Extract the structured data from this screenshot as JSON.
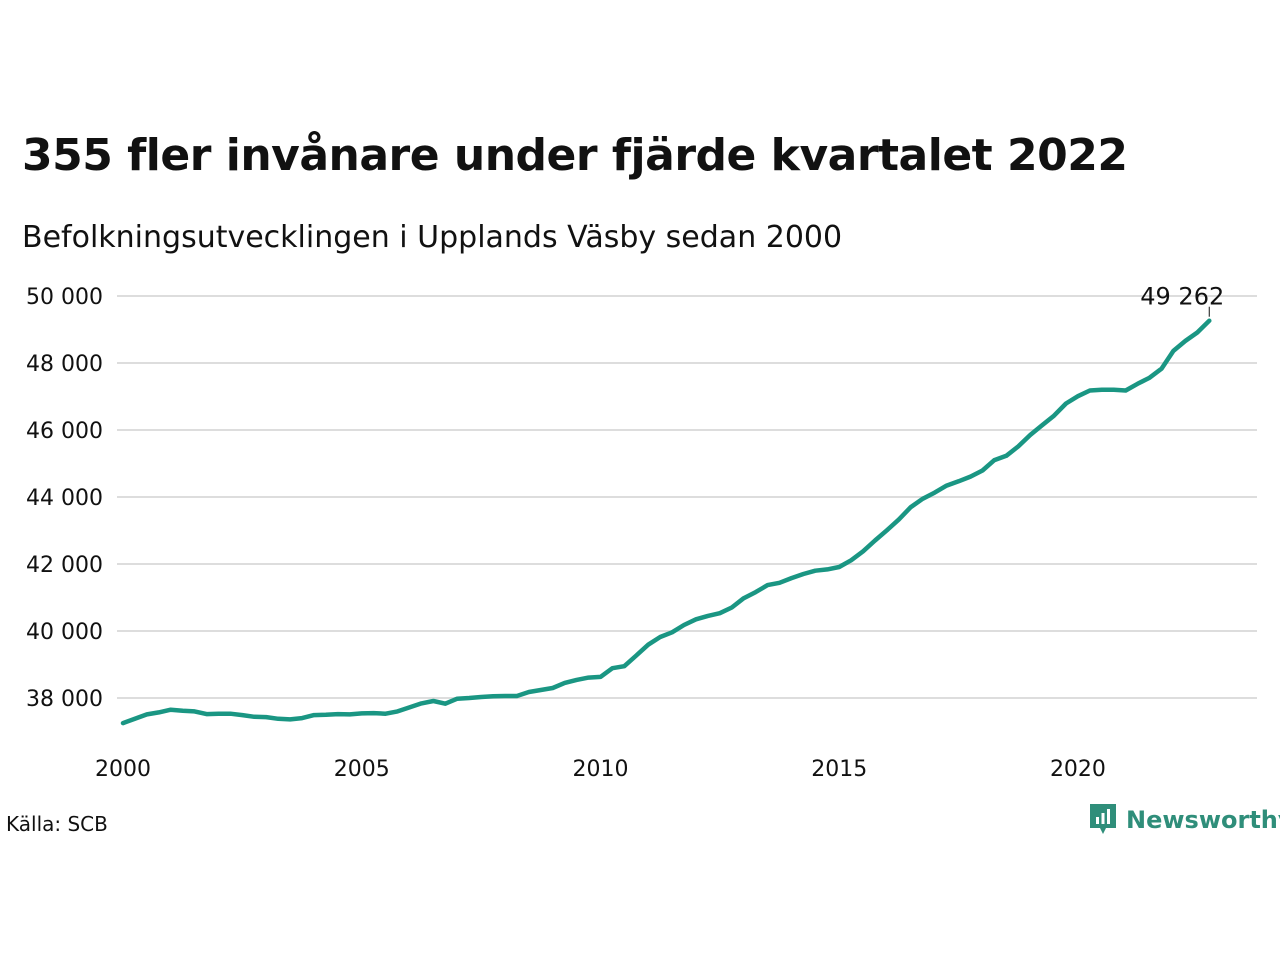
{
  "title": "355 fler invånare under fjärde kvartalet 2022",
  "subtitle": "Befolkningsutvecklingen i Upplands Väsby sedan 2000",
  "source": "Källa: SCB",
  "logo_text": "Newsworthy",
  "colors": {
    "line": "#1a9683",
    "grid": "#dddddd",
    "logo": "#2f8e7a"
  },
  "chart_data": {
    "type": "line",
    "title": "355 fler invånare under fjärde kvartalet 2022",
    "xlabel": "",
    "ylabel": "",
    "xlim": [
      2000,
      2023.75
    ],
    "ylim": [
      37000,
      50500
    ],
    "y_ticks": [
      38000,
      40000,
      42000,
      44000,
      46000,
      48000,
      50000
    ],
    "y_tick_labels": [
      "38 000",
      "40 000",
      "42 000",
      "44 000",
      "46 000",
      "48 000",
      "50 000"
    ],
    "x_ticks": [
      2000,
      2005,
      2010,
      2015,
      2020
    ],
    "x_tick_labels": [
      "2000",
      "2005",
      "2010",
      "2015",
      "2020"
    ],
    "grid": "horizontal",
    "end_label": "49 262",
    "series": [
      {
        "x": [
          2000.0,
          2000.25,
          2000.5,
          2000.75,
          2001.0,
          2001.25,
          2001.5,
          2001.75,
          2002.0,
          2002.25,
          2002.5,
          2002.75,
          2003.0,
          2003.25,
          2003.5,
          2003.75,
          2004.0,
          2004.25,
          2004.5,
          2004.75,
          2005.0,
          2005.25,
          2005.5,
          2005.75,
          2006.0,
          2006.25,
          2006.5,
          2006.75,
          2007.0,
          2007.25,
          2007.5,
          2007.75,
          2008.0,
          2008.25,
          2008.5,
          2008.75,
          2009.0,
          2009.25,
          2009.5,
          2009.75,
          2010.0,
          2010.25,
          2010.5,
          2010.75,
          2011.0,
          2011.25,
          2011.5,
          2011.75,
          2012.0,
          2012.25,
          2012.5,
          2012.75,
          2013.0,
          2013.25,
          2013.5,
          2013.75,
          2014.0,
          2014.25,
          2014.5,
          2014.75,
          2015.0,
          2015.25,
          2015.5,
          2015.75,
          2016.0,
          2016.25,
          2016.5,
          2016.75,
          2017.0,
          2017.25,
          2017.5,
          2017.75,
          2018.0,
          2018.25,
          2018.5,
          2018.75,
          2019.0,
          2019.25,
          2019.5,
          2019.75,
          2020.0,
          2020.25,
          2020.5,
          2020.75,
          2021.0,
          2021.25,
          2021.5,
          2021.75,
          2022.0,
          2022.25,
          2022.5,
          2022.75
        ],
        "values": [
          37250,
          37380,
          37510,
          37570,
          37650,
          37620,
          37600,
          37520,
          37530,
          37530,
          37490,
          37440,
          37430,
          37380,
          37360,
          37400,
          37490,
          37500,
          37520,
          37510,
          37540,
          37550,
          37530,
          37600,
          37720,
          37840,
          37910,
          37830,
          37980,
          38000,
          38030,
          38050,
          38060,
          38060,
          38180,
          38240,
          38300,
          38450,
          38540,
          38610,
          38630,
          38890,
          38950,
          39270,
          39590,
          39820,
          39960,
          40180,
          40350,
          40450,
          40530,
          40700,
          40980,
          41160,
          41370,
          41440,
          41580,
          41700,
          41800,
          41840,
          41910,
          42110,
          42380,
          42700,
          43010,
          43330,
          43700,
          43950,
          44130,
          44340,
          44470,
          44610,
          44790,
          45100,
          45230,
          45510,
          45850,
          46140,
          46430,
          46790,
          47010,
          47180,
          47200,
          47200,
          47180,
          47380,
          47560,
          47830,
          48360,
          48660,
          48910,
          49262
        ]
      }
    ]
  }
}
